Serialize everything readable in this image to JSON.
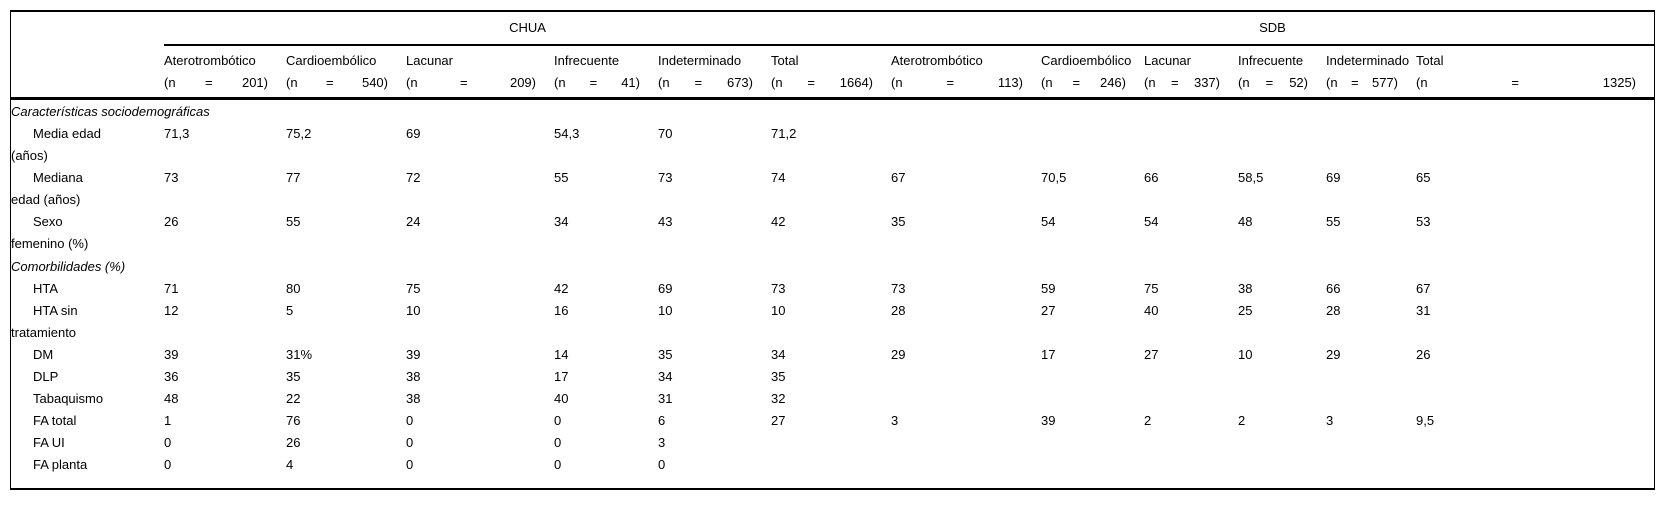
{
  "chart_data": {
    "type": "table",
    "groups": [
      {
        "label": "CHUA",
        "columns": [
          {
            "name": "Aterotrombótico",
            "n": "(n = 201)"
          },
          {
            "name": "Cardioembólico",
            "n": "(n = 540)"
          },
          {
            "name": "Lacunar",
            "n": "(n = 209)"
          },
          {
            "name": "Infrecuente",
            "n": "(n = 41)"
          },
          {
            "name": "Indeterminado",
            "n": "(n = 673)"
          },
          {
            "name": "Total",
            "n": "(n = 1664)"
          }
        ]
      },
      {
        "label": "SDB",
        "columns": [
          {
            "name": "Aterotrombótico",
            "n": "(n = 113)"
          },
          {
            "name": "Cardioembólico",
            "n": "(n = 246)"
          },
          {
            "name": "Lacunar",
            "n": "(n = 337)"
          },
          {
            "name": "Infrecuente",
            "n": "(n = 52)"
          },
          {
            "name": "Indeterminado",
            "n": "(n = 577)"
          },
          {
            "name": "Total",
            "n": "(n = 1325)"
          }
        ]
      }
    ],
    "rows": [
      {
        "type": "section",
        "label": "Características sociodemográficas"
      },
      {
        "type": "data",
        "label": [
          "Media edad",
          "(años)"
        ],
        "values": [
          "71,3",
          "75,2",
          "69",
          "54,3",
          "70",
          "71,2",
          "",
          "",
          "",
          "",
          "",
          ""
        ]
      },
      {
        "type": "data",
        "label": [
          "Mediana",
          "edad (años)"
        ],
        "values": [
          "73",
          "77",
          "72",
          "55",
          "73",
          "74",
          "67",
          "70,5",
          "66",
          "58,5",
          "69",
          "65"
        ]
      },
      {
        "type": "data",
        "label": [
          "Sexo",
          "femenino (%)"
        ],
        "values": [
          "26",
          "55",
          "24",
          "34",
          "43",
          "42",
          "35",
          "54",
          "54",
          "48",
          "55",
          "53"
        ]
      },
      {
        "type": "section",
        "label": "Comorbilidades (%)"
      },
      {
        "type": "data",
        "label": "HTA",
        "values": [
          "71",
          "80",
          "75",
          "42",
          "69",
          "73",
          "73",
          "59",
          "75",
          "38",
          "66",
          "67"
        ]
      },
      {
        "type": "data",
        "label": [
          "HTA sin",
          "tratamiento"
        ],
        "values": [
          "12",
          "5",
          "10",
          "16",
          "10",
          "10",
          "28",
          "27",
          "40",
          "25",
          "28",
          "31"
        ]
      },
      {
        "type": "data",
        "label": "DM",
        "values": [
          "39",
          "31%",
          "39",
          "14",
          "35",
          "34",
          "29",
          "17",
          "27",
          "10",
          "29",
          "26"
        ]
      },
      {
        "type": "data",
        "label": "DLP",
        "values": [
          "36",
          "35",
          "38",
          "17",
          "34",
          "35",
          "",
          "",
          "",
          "",
          "",
          ""
        ]
      },
      {
        "type": "data",
        "label": "Tabaquismo",
        "values": [
          "48",
          "22",
          "38",
          "40",
          "31",
          "32",
          "",
          "",
          "",
          "",
          "",
          ""
        ]
      },
      {
        "type": "data",
        "label": "FA total",
        "values": [
          "1",
          "76",
          "0",
          "0",
          "6",
          "27",
          "3",
          "39",
          "2",
          "2",
          "3",
          "9,5"
        ]
      },
      {
        "type": "data",
        "label": "FA UI",
        "values": [
          "0",
          "26",
          "0",
          "0",
          "3",
          "",
          "",
          "",
          "",
          "",
          "",
          ""
        ]
      },
      {
        "type": "data",
        "label": "FA planta",
        "values": [
          "0",
          "4",
          "0",
          "0",
          "0",
          "",
          "",
          "",
          "",
          "",
          "",
          ""
        ]
      }
    ],
    "colors": {
      "text": "#000000",
      "background": "#ffffff",
      "rule": "#000000"
    }
  }
}
